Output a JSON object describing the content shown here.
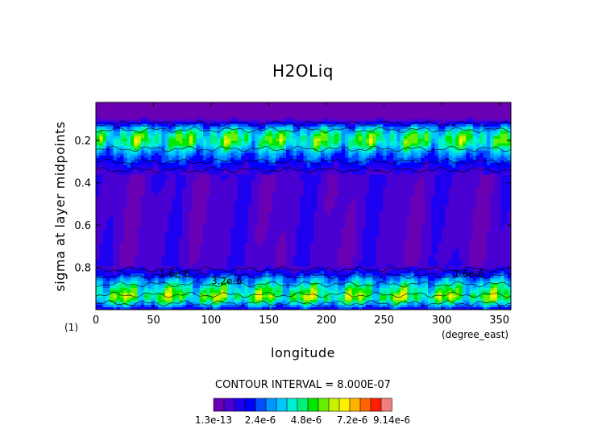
{
  "chart_data": {
    "type": "heatmap",
    "title": "H2OLiq",
    "xlabel": "longitude",
    "ylabel": "sigma at layer midpoints",
    "x_unit": "(degree_east)",
    "y_unit": "(1)",
    "xlim": [
      0,
      360
    ],
    "ylim": [
      0.02,
      1.0
    ],
    "y_inverted": true,
    "x_ticks": [
      0,
      50,
      100,
      150,
      200,
      250,
      300,
      350
    ],
    "y_ticks": [
      0.2,
      0.4,
      0.6,
      0.8
    ],
    "x_tick_labels": [
      "0",
      "50",
      "100",
      "150",
      "200",
      "250",
      "300",
      "350"
    ],
    "y_tick_labels": [
      "0.2",
      "0.4",
      "0.6",
      "0.8"
    ],
    "contour_interval_text": "CONTOUR INTERVAL = 8.000E-07",
    "colorbar": {
      "tick_labels": [
        "1.3e-13",
        "2.4e-6",
        "4.8e-6",
        "7.2e-6",
        "9.14e-6"
      ],
      "colors": [
        "#6a00b4",
        "#4b00d2",
        "#1e00f0",
        "#0000ff",
        "#0050ff",
        "#0096ff",
        "#00c8ff",
        "#00f0d2",
        "#00f078",
        "#00e600",
        "#64f000",
        "#c8f000",
        "#fff000",
        "#ffb400",
        "#ff6400",
        "#ff1e00",
        "#f08080"
      ]
    },
    "inline_labels": [
      "1.6e-6",
      "3.2e-6",
      "1.6e-6"
    ],
    "sigma_profile": {
      "sigma": [
        0.02,
        0.06,
        0.1,
        0.14,
        0.16,
        0.18,
        0.2,
        0.22,
        0.24,
        0.27,
        0.3,
        0.33,
        0.36,
        0.45,
        0.55,
        0.65,
        0.75,
        0.8,
        0.83,
        0.86,
        0.89,
        0.92,
        0.94,
        0.96,
        0.98,
        1.0
      ],
      "mean_value_e6": [
        0.02,
        0.05,
        0.5,
        3.0,
        4.0,
        4.6,
        4.8,
        4.4,
        3.6,
        2.6,
        2.0,
        1.4,
        0.9,
        0.8,
        0.8,
        0.8,
        0.8,
        0.9,
        1.8,
        3.0,
        4.0,
        4.8,
        5.2,
        4.4,
        3.0,
        1.5
      ]
    }
  }
}
